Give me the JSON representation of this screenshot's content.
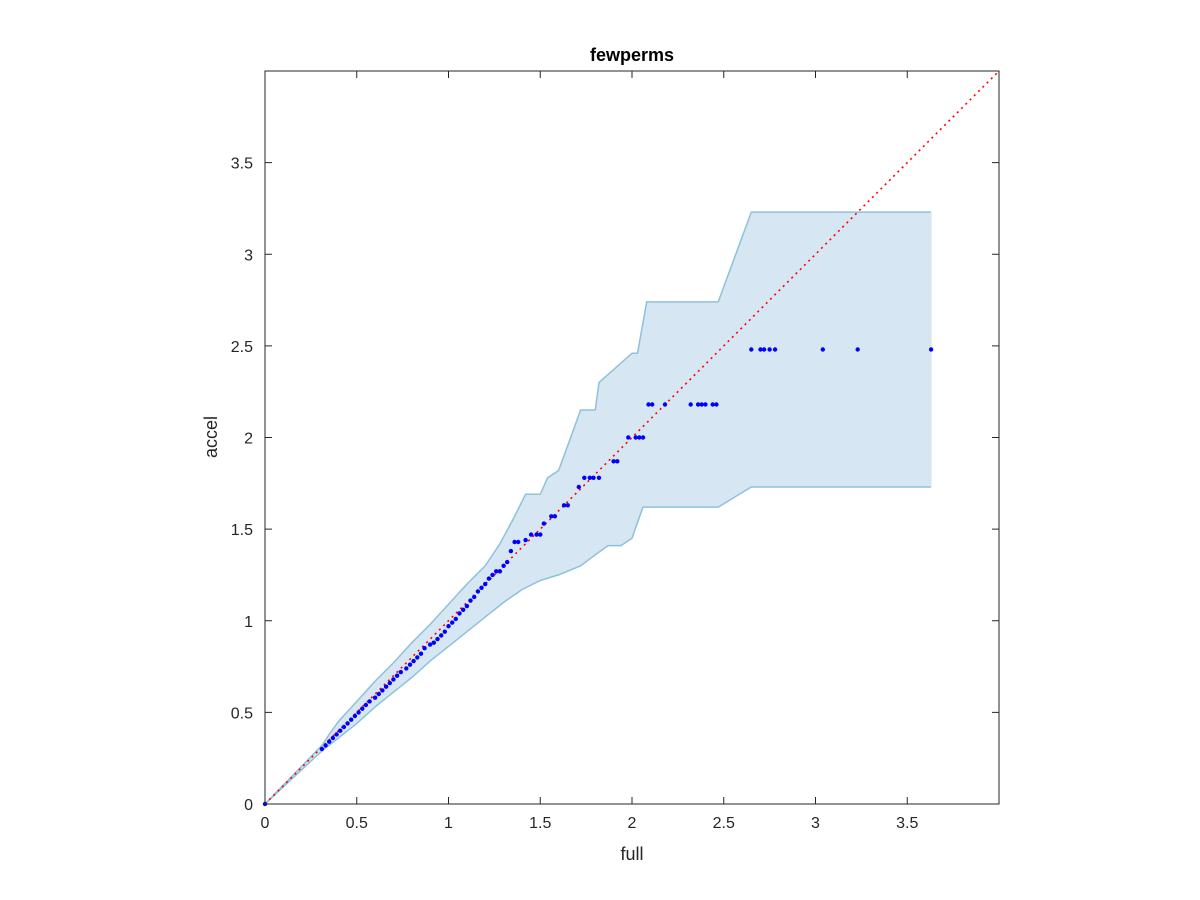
{
  "chart_data": {
    "type": "scatter",
    "title": "fewperms",
    "xlabel": "full",
    "ylabel": "accel",
    "xlim": [
      0,
      4
    ],
    "ylim": [
      0,
      4
    ],
    "xticks": [
      0,
      0.5,
      1,
      1.5,
      2,
      2.5,
      3,
      3.5
    ],
    "yticks": [
      0,
      0.5,
      1,
      1.5,
      2,
      2.5,
      3,
      3.5
    ],
    "xtick_labels": [
      "0",
      "0.5",
      "1",
      "1.5",
      "2",
      "2.5",
      "3",
      "3.5"
    ],
    "ytick_labels": [
      "0",
      "0.5",
      "1",
      "1.5",
      "2",
      "2.5",
      "3",
      "3.5"
    ],
    "grid": false,
    "box": true,
    "colors": {
      "points": "#0000ff",
      "reference_line": "#ff0000",
      "band_fill": "#d6e6f3",
      "band_edge": "#8ec1dc",
      "axes": "#262626"
    },
    "reference_line": {
      "x": [
        0,
        4
      ],
      "y": [
        0,
        4
      ],
      "style": "dotted"
    },
    "band_upper": {
      "x": [
        0,
        0.31,
        0.35,
        0.4,
        0.5,
        0.6,
        0.7,
        0.8,
        0.9,
        1.0,
        1.1,
        1.2,
        1.28,
        1.35,
        1.42,
        1.5,
        1.54,
        1.6,
        1.68,
        1.72,
        1.8,
        1.82,
        2.0,
        2.03,
        2.08,
        2.47,
        2.65,
        3.63
      ],
      "y": [
        0,
        0.32,
        0.38,
        0.45,
        0.56,
        0.67,
        0.77,
        0.88,
        0.98,
        1.09,
        1.2,
        1.3,
        1.42,
        1.55,
        1.69,
        1.69,
        1.78,
        1.82,
        2.04,
        2.15,
        2.15,
        2.3,
        2.46,
        2.46,
        2.74,
        2.74,
        3.23,
        3.23
      ]
    },
    "band_lower": {
      "x": [
        0,
        0.31,
        0.4,
        0.5,
        0.6,
        0.7,
        0.8,
        0.9,
        1.0,
        1.1,
        1.2,
        1.3,
        1.4,
        1.5,
        1.6,
        1.72,
        1.8,
        1.87,
        1.94,
        2.0,
        2.06,
        2.1,
        2.47,
        2.65,
        3.63
      ],
      "y": [
        0,
        0.29,
        0.36,
        0.44,
        0.53,
        0.61,
        0.69,
        0.78,
        0.86,
        0.94,
        1.02,
        1.1,
        1.17,
        1.22,
        1.25,
        1.3,
        1.36,
        1.41,
        1.41,
        1.45,
        1.62,
        1.62,
        1.62,
        1.73,
        1.73
      ]
    },
    "series": [
      {
        "x": [
          0,
          0.31,
          0.33,
          0.35,
          0.37,
          0.39,
          0.41,
          0.43,
          0.45,
          0.47,
          0.49,
          0.51,
          0.53,
          0.55,
          0.57,
          0.6,
          0.62,
          0.64,
          0.66,
          0.68,
          0.7,
          0.72,
          0.74,
          0.77,
          0.79,
          0.81,
          0.83,
          0.85,
          0.87,
          0.9,
          0.92,
          0.94,
          0.96,
          0.98,
          1.0,
          1.02,
          1.04,
          1.06,
          1.08,
          1.1,
          1.12,
          1.14,
          1.16,
          1.18,
          1.2,
          1.22,
          1.24,
          1.26,
          1.28,
          1.3,
          1.32,
          1.34,
          1.36,
          1.38,
          1.42,
          1.45,
          1.48,
          1.5,
          1.52,
          1.56,
          1.58,
          1.63,
          1.65,
          1.71,
          1.74,
          1.77,
          1.79,
          1.82,
          1.9,
          1.92,
          1.98,
          2.02,
          2.04,
          2.06,
          2.09,
          2.11,
          2.18,
          2.32,
          2.36,
          2.38,
          2.4,
          2.44,
          2.46,
          2.65,
          2.7,
          2.72,
          2.75,
          2.78,
          3.04,
          3.23,
          3.63
        ],
        "y": [
          0,
          0.3,
          0.32,
          0.34,
          0.36,
          0.38,
          0.4,
          0.42,
          0.44,
          0.46,
          0.48,
          0.5,
          0.52,
          0.54,
          0.56,
          0.58,
          0.6,
          0.62,
          0.64,
          0.66,
          0.68,
          0.7,
          0.72,
          0.74,
          0.76,
          0.78,
          0.8,
          0.82,
          0.85,
          0.87,
          0.88,
          0.9,
          0.92,
          0.94,
          0.97,
          0.99,
          1.01,
          1.04,
          1.06,
          1.08,
          1.11,
          1.13,
          1.16,
          1.18,
          1.2,
          1.23,
          1.25,
          1.27,
          1.27,
          1.3,
          1.32,
          1.38,
          1.43,
          1.43,
          1.44,
          1.47,
          1.47,
          1.47,
          1.53,
          1.57,
          1.57,
          1.63,
          1.63,
          1.73,
          1.78,
          1.78,
          1.78,
          1.78,
          1.87,
          1.87,
          2.0,
          2.0,
          2.0,
          2.0,
          2.18,
          2.18,
          2.18,
          2.18,
          2.18,
          2.18,
          2.18,
          2.18,
          2.18,
          2.48,
          2.48,
          2.48,
          2.48,
          2.48,
          2.48,
          2.48,
          2.48
        ]
      }
    ]
  }
}
